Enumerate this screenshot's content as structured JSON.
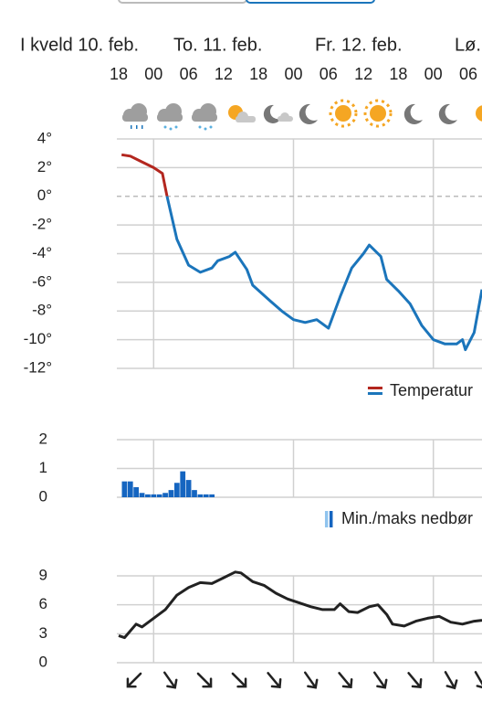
{
  "header": {
    "days": [
      "I kveld 10. feb.",
      "To. 11. feb.",
      "Fr. 12. feb.",
      "Lø."
    ]
  },
  "chart_data": [
    {
      "type": "line",
      "xlim": [
        0,
        62.35
      ],
      "xticks": [
        {
          "value": 0,
          "label": "18"
        },
        {
          "value": 6,
          "label": "00"
        },
        {
          "value": 12,
          "label": "06"
        },
        {
          "value": 18,
          "label": "12"
        },
        {
          "value": 24,
          "label": "18"
        },
        {
          "value": 30,
          "label": "00"
        },
        {
          "value": 36,
          "label": "06"
        },
        {
          "value": 42,
          "label": "12"
        },
        {
          "value": 48,
          "label": "18"
        },
        {
          "value": 54,
          "label": "00"
        },
        {
          "value": 60,
          "label": "06"
        }
      ],
      "vgrid": [
        6,
        30,
        54
      ],
      "ylim": [
        -12,
        4
      ],
      "yticks": [
        {
          "value": 4,
          "label": "4°"
        },
        {
          "value": 2,
          "label": "2°"
        },
        {
          "value": 0,
          "label": "0°"
        },
        {
          "value": -2,
          "label": "-2°"
        },
        {
          "value": -4,
          "label": "-4°"
        },
        {
          "value": -6,
          "label": "-6°"
        },
        {
          "value": -8,
          "label": "-8°"
        },
        {
          "value": -10,
          "label": "-10°"
        },
        {
          "value": -12,
          "label": "-12°"
        }
      ],
      "zero_line": "dashed",
      "legend": "bottom-right",
      "series": [
        {
          "name": "Temperatur",
          "color": "#1b75bb",
          "warm_color": "#b3261e",
          "x": [
            0.5,
            2,
            4,
            6,
            7.5,
            8.3,
            10,
            12,
            14,
            16,
            17,
            19,
            20,
            22,
            23,
            26,
            28,
            30,
            32,
            34,
            36,
            38,
            40,
            42,
            43,
            45,
            46,
            48,
            50,
            52,
            54,
            56,
            58,
            59,
            59.5,
            61,
            62.35
          ],
          "values": [
            2.9,
            2.8,
            2.4,
            2.0,
            1.6,
            0,
            -3.0,
            -4.8,
            -5.3,
            -5.0,
            -4.5,
            -4.2,
            -3.9,
            -5.1,
            -6.2,
            -7.3,
            -8.0,
            -8.6,
            -8.8,
            -8.6,
            -9.2,
            -7.0,
            -5.0,
            -4.0,
            -3.4,
            -4.2,
            -5.8,
            -6.6,
            -7.5,
            -9.0,
            -10.0,
            -10.3,
            -10.3,
            -10.0,
            -10.7,
            -9.5,
            -6.5
          ]
        }
      ]
    },
    {
      "type": "bar",
      "xlim": [
        0,
        62.35
      ],
      "vgrid": [
        6,
        30,
        54
      ],
      "ylim": [
        0,
        2
      ],
      "yticks": [
        2,
        1,
        0
      ],
      "legend": "bottom-right",
      "series": [
        {
          "name": "Min./maks nedbør",
          "color": "#1565c0",
          "x": [
            1,
            2,
            3,
            4,
            5,
            6,
            7,
            8,
            9,
            10,
            11,
            12,
            13,
            14,
            15,
            16
          ],
          "values": [
            0.55,
            0.55,
            0.35,
            0.15,
            0.1,
            0.1,
            0.1,
            0.15,
            0.25,
            0.5,
            0.9,
            0.6,
            0.25,
            0.1,
            0.1,
            0.1
          ]
        }
      ]
    },
    {
      "type": "line",
      "xlim": [
        0,
        62.35
      ],
      "vgrid": [
        6,
        30,
        54
      ],
      "ylim": [
        0,
        9
      ],
      "yticks": [
        9,
        6,
        3,
        0
      ],
      "series": [
        {
          "color": "#222222",
          "x": [
            0,
            1,
            3,
            4,
            6,
            8,
            10,
            12,
            14,
            16,
            18,
            20,
            21,
            23,
            25,
            27,
            29,
            31,
            33,
            35,
            37,
            38,
            39.5,
            41,
            43,
            44.5,
            46,
            47,
            49,
            51,
            53,
            55,
            57,
            59,
            61,
            62.35
          ],
          "values": [
            2.8,
            2.6,
            4.0,
            3.7,
            4.6,
            5.5,
            7.0,
            7.8,
            8.3,
            8.2,
            8.8,
            9.4,
            9.3,
            8.4,
            8.0,
            7.2,
            6.6,
            6.2,
            5.8,
            5.5,
            5.5,
            6.1,
            5.3,
            5.2,
            5.8,
            6.0,
            5.0,
            4.0,
            3.8,
            4.3,
            4.6,
            4.8,
            4.2,
            4.0,
            4.3,
            4.4
          ]
        }
      ]
    }
  ]
}
